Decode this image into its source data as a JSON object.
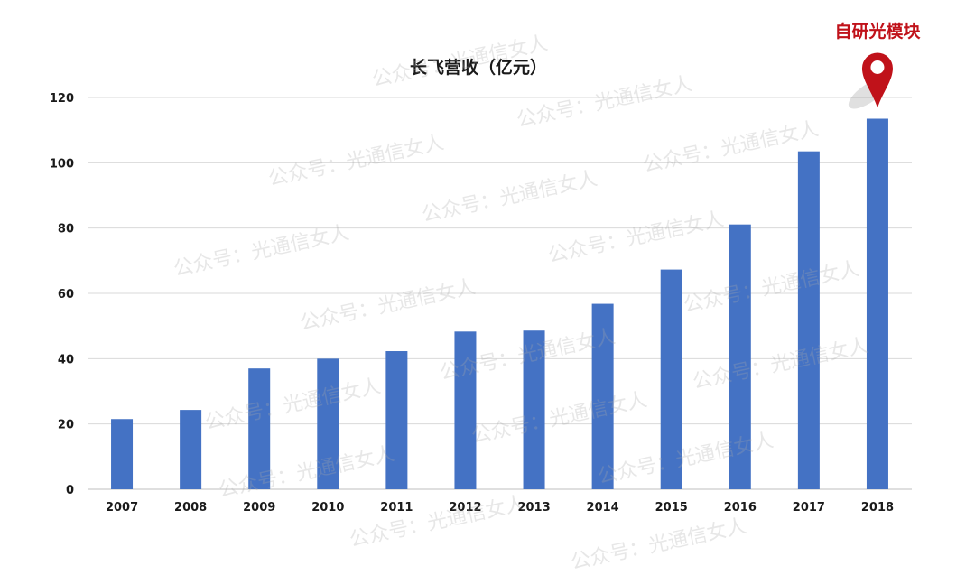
{
  "chart_data": {
    "type": "bar",
    "title": "长飞营收（亿元）",
    "categories": [
      "2007",
      "2008",
      "2009",
      "2010",
      "2011",
      "2012",
      "2013",
      "2014",
      "2015",
      "2016",
      "2017",
      "2018"
    ],
    "series": [
      {
        "values": [
          21.5,
          24.3,
          37,
          40,
          42.3,
          48.3,
          48.6,
          56.8,
          67.3,
          81.1,
          103.5,
          113.5
        ]
      }
    ],
    "ylim": [
      0,
      120
    ],
    "yticks": [
      0,
      20,
      40,
      60,
      80,
      100,
      120
    ],
    "bar_color": "#4472C4",
    "grid": true,
    "annotation": {
      "text": "自研光模块",
      "target": "2018",
      "color": "#C0121A"
    }
  },
  "watermark": "公众号：光通信女人"
}
